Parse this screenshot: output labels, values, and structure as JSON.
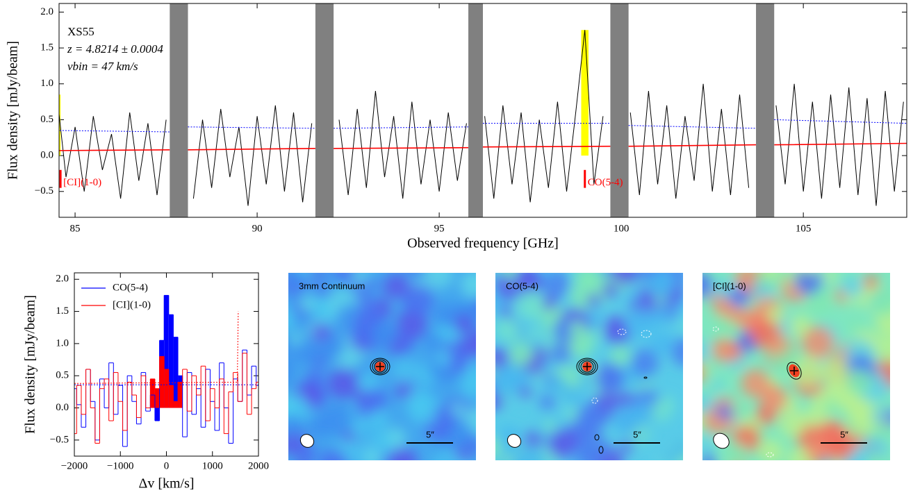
{
  "chart_data": [
    {
      "type": "line",
      "title_box": [
        "XS55",
        "z = 4.8214 ± 0.0004",
        "vbin = 47 km/s"
      ],
      "xlabel": "Observed frequency [GHz]",
      "ylabel": "Flux density [mJy/beam]",
      "xlim": [
        84.56,
        107.84
      ],
      "ylim": [
        -0.86,
        2.12
      ],
      "xticks": [
        85,
        90,
        95,
        100,
        105
      ],
      "yticks": [
        {
          "value": -0.5,
          "label": "−0.5"
        },
        {
          "value": 0,
          "label": "0.0"
        },
        {
          "value": 0.5,
          "label": "0.5"
        },
        {
          "value": 1,
          "label": "1.0"
        },
        {
          "value": 1.5,
          "label": "1.5"
        },
        {
          "value": 2,
          "label": "2.0"
        }
      ],
      "bands": [
        [
          87.6,
          88.1
        ],
        [
          91.6,
          92.1
        ],
        [
          95.8,
          96.2
        ],
        [
          99.7,
          100.2
        ],
        [
          103.7,
          104.2
        ]
      ],
      "band_color": "#808080",
      "highlights": [
        [
          84.4,
          84.6
        ],
        [
          98.9,
          99.1
        ]
      ],
      "highlight_color": "#ffff00",
      "line_markers": [
        {
          "x": 84.6,
          "label": "[CI](1-0)"
        },
        {
          "x": 99.0,
          "label": "CO(5-4)"
        }
      ],
      "marker_color": "#ff0000",
      "x": [
        84.5,
        84.75,
        85,
        85.25,
        85.5,
        85.75,
        86,
        86.25,
        86.5,
        86.75,
        87,
        87.25,
        87.5,
        87.75,
        88,
        88.25,
        88.5,
        88.75,
        89,
        89.25,
        89.5,
        89.75,
        90,
        90.25,
        90.5,
        90.75,
        91,
        91.25,
        91.5,
        91.75,
        92,
        92.25,
        92.5,
        92.75,
        93,
        93.25,
        93.5,
        93.75,
        94,
        94.25,
        94.5,
        94.75,
        95,
        95.25,
        95.5,
        95.75,
        96,
        96.25,
        96.5,
        96.75,
        97,
        97.25,
        97.5,
        97.75,
        98,
        98.25,
        98.5,
        98.75,
        99,
        99.25,
        99.5,
        99.75,
        100,
        100.25,
        100.5,
        100.75,
        101,
        101.25,
        101.5,
        101.75,
        102,
        102.25,
        102.5,
        102.75,
        103,
        103.25,
        103.5,
        103.75,
        104,
        104.25,
        104.5,
        104.75,
        105,
        105.25,
        105.5,
        105.75,
        106,
        106.25,
        106.5,
        106.75,
        107,
        107.25,
        107.5,
        107.75
      ],
      "series": [
        {
          "name": "spectrum",
          "color": "#000000",
          "values": [
            0.85,
            -0.3,
            0.4,
            -0.5,
            0.55,
            -0.2,
            0.3,
            -0.6,
            0.6,
            -0.35,
            0.45,
            -0.55,
            0.5,
            null,
            null,
            -0.6,
            0.5,
            -0.45,
            0.65,
            -0.3,
            0.4,
            -0.7,
            0.55,
            -0.4,
            0.7,
            -0.5,
            0.6,
            -0.65,
            0.45,
            null,
            null,
            0.5,
            -0.55,
            0.65,
            -0.45,
            0.9,
            -0.3,
            0.55,
            -0.6,
            0.75,
            -0.4,
            0.5,
            -0.5,
            0.6,
            -0.35,
            0.45,
            null,
            0.55,
            -0.6,
            0.7,
            -0.4,
            0.6,
            -0.65,
            0.5,
            -0.45,
            0.75,
            -0.5,
            0.6,
            1.75,
            -0.4,
            0.55,
            null,
            null,
            0.6,
            -0.55,
            0.9,
            -0.4,
            0.7,
            -0.6,
            0.55,
            -0.35,
            1.0,
            -0.5,
            0.65,
            -0.55,
            0.85,
            -0.45,
            null,
            null,
            0.7,
            -0.4,
            1.0,
            -0.5,
            0.75,
            -0.6,
            0.85,
            -0.45,
            0.95,
            -0.55,
            0.8,
            -0.7,
            0.9,
            -0.5,
            0.75
          ]
        },
        {
          "name": "continuum",
          "color": "#ff0000",
          "x": [
            84.5,
            87.6,
            87.85,
            88.1,
            91.6,
            91.85,
            92.1,
            95.8,
            96.0,
            96.2,
            99.7,
            99.95,
            100.2,
            103.7,
            103.95,
            104.2,
            107.84
          ],
          "values": [
            0.07,
            0.08,
            null,
            0.08,
            0.1,
            null,
            0.1,
            0.11,
            null,
            0.12,
            0.13,
            null,
            0.13,
            0.15,
            null,
            0.15,
            0.17
          ]
        },
        {
          "name": "noise",
          "color": "#0000ff",
          "dashed": true,
          "x": [
            84.5,
            87.6,
            87.85,
            88.1,
            91.6,
            91.85,
            92.1,
            95.8,
            96.0,
            96.2,
            99.7,
            99.95,
            100.2,
            103.7,
            103.95,
            104.2,
            107.84
          ],
          "values": [
            0.35,
            0.33,
            null,
            0.4,
            0.38,
            null,
            0.38,
            0.4,
            null,
            0.45,
            0.45,
            null,
            0.42,
            0.38,
            null,
            0.5,
            0.45
          ]
        }
      ]
    },
    {
      "type": "step",
      "xlabel": "Δv [km/s]",
      "ylabel": "Flux density [mJy/beam]",
      "xlim": [
        -2000,
        2000
      ],
      "ylim": [
        -0.75,
        2.1
      ],
      "xticks": [
        {
          "value": -2000,
          "label": "−2000"
        },
        {
          "value": -1000,
          "label": "−1000"
        },
        0,
        1000,
        2000
      ],
      "yticks": [
        {
          "value": -0.5,
          "label": "−0.5"
        },
        {
          "value": 0,
          "label": "0.0"
        },
        {
          "value": 0.5,
          "label": "0.5"
        },
        {
          "value": 1,
          "label": "1.0"
        },
        {
          "value": 1.5,
          "label": "1.5"
        },
        {
          "value": 2,
          "label": "2.0"
        }
      ],
      "fill_range": [
        -300,
        350
      ],
      "legend": "upper left",
      "x": [
        -2000,
        -1900,
        -1800,
        -1700,
        -1600,
        -1500,
        -1400,
        -1300,
        -1200,
        -1100,
        -1000,
        -900,
        -800,
        -700,
        -600,
        -500,
        -400,
        -300,
        -200,
        -100,
        0,
        100,
        200,
        300,
        400,
        500,
        600,
        700,
        800,
        900,
        1000,
        1100,
        1200,
        1300,
        1400,
        1500,
        1600,
        1700,
        1800,
        1900,
        2000
      ],
      "series": [
        {
          "name": "CO(5-4)",
          "color": "#0000ff",
          "values": [
            0.3,
            0.05,
            -0.3,
            0.6,
            0.1,
            -0.5,
            0.45,
            0.0,
            0.7,
            -0.1,
            0.35,
            -0.6,
            0.5,
            0.1,
            -0.25,
            0.55,
            -0.05,
            0.2,
            -0.2,
            1.05,
            1.75,
            1.45,
            1.1,
            0.5,
            -0.45,
            0.55,
            -0.1,
            0.3,
            -0.3,
            0.6,
            0.1,
            -0.35,
            0.7,
            0.0,
            -0.55,
            0.45,
            0.1,
            0.9,
            0.2,
            0.65,
            0.35
          ],
          "noise": {
            "x": [
              -2000,
              2000
            ],
            "values": [
              0.36,
              0.36
            ]
          }
        },
        {
          "name": "[CI](1-0)",
          "color": "#ff0000",
          "values": [
            -0.4,
            0.35,
            -0.1,
            0.6,
            0.0,
            -0.55,
            0.3,
            0.45,
            -0.2,
            0.55,
            0.1,
            -0.35,
            0.4,
            0.2,
            -0.15,
            0.5,
            0.0,
            0.45,
            0.3,
            0.8,
            0.6,
            0.35,
            0.1,
            0.4,
            0.6,
            -0.05,
            0.5,
            0.2,
            0.65,
            -0.2,
            0.3,
            0.0,
            0.45,
            -0.4,
            0.25,
            0.55,
            0.1,
            0.85,
            -0.1,
            0.3,
            0.4
          ],
          "noise": {
            "x": [
              -2000,
              1540,
              1560
            ],
            "values": [
              0.38,
              0.4,
              1.5
            ]
          }
        }
      ]
    },
    {
      "type": "image",
      "title": "3mm Continuum",
      "scale_label": "5″"
    },
    {
      "type": "image",
      "title": "CO(5-4)",
      "scale_label": "5″"
    },
    {
      "type": "image",
      "title": "[CI](1-0)",
      "scale_label": "5″"
    }
  ]
}
